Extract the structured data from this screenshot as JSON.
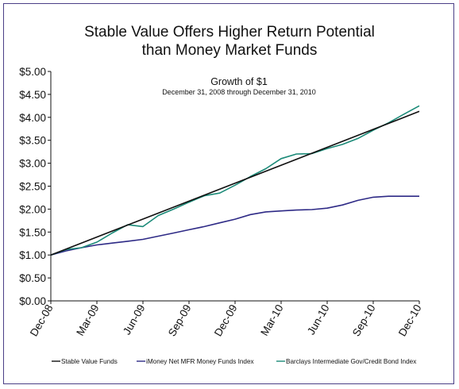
{
  "chart_title_line1": "Stable Value Offers Higher Return Potential",
  "chart_title_line2": "than Money Market Funds",
  "chart_data": {
    "type": "line",
    "subtitle": "Growth of $1",
    "subtitle2": "December 31, 2008 through December 31, 2010",
    "xlabel": "",
    "ylabel": "",
    "x_ticks": [
      "Dec-08",
      "Mar-09",
      "Jun-09",
      "Sep-09",
      "Dec-09",
      "Mar-10",
      "Jun-10",
      "Sep-10",
      "Dec-10"
    ],
    "y_ticks": [
      "$0.00",
      "$0.50",
      "$1.00",
      "$1.50",
      "$2.00",
      "$2.50",
      "$3.00",
      "$3.50",
      "$4.00",
      "$4.50",
      "$5.00"
    ],
    "ylim": [
      0,
      5
    ],
    "xlim": [
      0,
      24
    ],
    "grid": false,
    "legend_position": "bottom",
    "series": [
      {
        "name": "Stable Value Funds",
        "color": "#111111",
        "x": [
          0,
          24
        ],
        "values": [
          1.0,
          4.13
        ]
      },
      {
        "name": "iMoney Net MFR Money Funds Index",
        "color": "#2e2a86",
        "x": [
          0,
          1,
          2,
          3,
          4,
          5,
          6,
          7,
          8,
          9,
          10,
          11,
          12,
          13,
          14,
          15,
          16,
          17,
          18,
          19,
          20,
          21,
          22,
          23,
          24
        ],
        "values": [
          1.0,
          1.09,
          1.16,
          1.22,
          1.26,
          1.3,
          1.34,
          1.41,
          1.48,
          1.55,
          1.62,
          1.7,
          1.78,
          1.88,
          1.94,
          1.96,
          1.98,
          1.99,
          2.02,
          2.09,
          2.19,
          2.26,
          2.28,
          2.28,
          2.28
        ]
      },
      {
        "name": "Barclays Intermediate Gov/Credit Bond Index",
        "color": "#1b8a78",
        "x": [
          0,
          1,
          2,
          3,
          4,
          5,
          6,
          7,
          8,
          9,
          10,
          11,
          12,
          13,
          14,
          15,
          16,
          17,
          18,
          19,
          20,
          21,
          22,
          23,
          24
        ],
        "values": [
          1.0,
          1.12,
          1.16,
          1.28,
          1.48,
          1.66,
          1.62,
          1.86,
          2.0,
          2.15,
          2.29,
          2.35,
          2.52,
          2.71,
          2.88,
          3.1,
          3.2,
          3.21,
          3.32,
          3.41,
          3.54,
          3.72,
          3.88,
          4.07,
          4.25
        ]
      }
    ]
  }
}
